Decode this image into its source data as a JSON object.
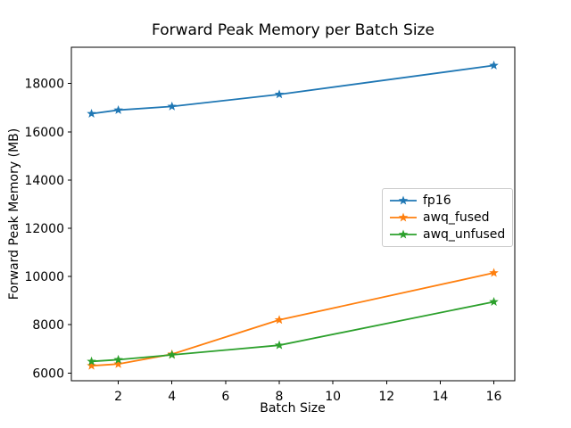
{
  "chart_data": {
    "type": "line",
    "title": "Forward Peak Memory per Batch Size",
    "xlabel": "Batch Size",
    "ylabel": "Forward Peak Memory (MB)",
    "x": [
      1,
      2,
      4,
      8,
      16
    ],
    "series": [
      {
        "name": "fp16",
        "color": "#1f77b4",
        "values": [
          16750,
          16900,
          17050,
          17550,
          18750
        ]
      },
      {
        "name": "awq_fused",
        "color": "#ff7f0e",
        "values": [
          6300,
          6370,
          6780,
          8200,
          10150
        ]
      },
      {
        "name": "awq_unfused",
        "color": "#2ca02c",
        "values": [
          6480,
          6550,
          6750,
          7150,
          8950
        ]
      }
    ],
    "marker": "star",
    "xticks": [
      2,
      4,
      6,
      8,
      10,
      12,
      14,
      16
    ],
    "yticks": [
      6000,
      8000,
      10000,
      12000,
      14000,
      16000,
      18000
    ],
    "xlim": [
      0.25,
      16.78
    ],
    "ylim": [
      5678,
      19504
    ],
    "grid": false,
    "legend_position": "center right",
    "axis_color": "#000000"
  }
}
